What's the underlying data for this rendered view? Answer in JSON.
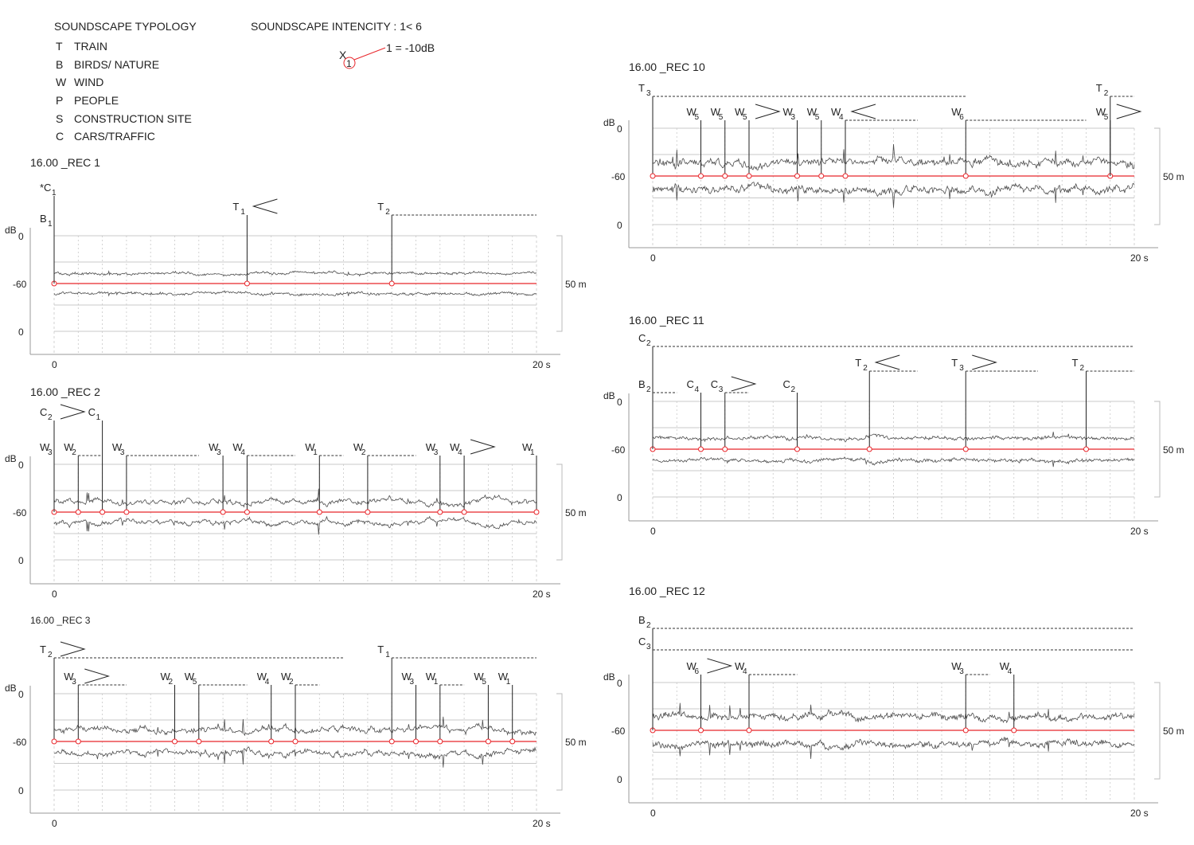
{
  "legend": {
    "title": "SOUNDSCAPE TYPOLOGY",
    "items": [
      {
        "code": "T",
        "label": "TRAIN"
      },
      {
        "code": "B",
        "label": "BIRDS/ NATURE"
      },
      {
        "code": "W",
        "label": "WIND"
      },
      {
        "code": "P",
        "label": "PEOPLE"
      },
      {
        "code": "S",
        "label": "CONSTRUCTION SITE"
      },
      {
        "code": "C",
        "label": "CARS/TRAFFIC"
      }
    ]
  },
  "intensity": {
    "title": "SOUNDSCAPE INTENCITY : 1< 6",
    "symbol": "X",
    "index": "1",
    "note": "1 = -10dB"
  },
  "colors": {
    "baseline": "#e8262b",
    "trace": "#4d4d4d",
    "dashed": "#333333",
    "grid": "#c8c8c8",
    "marker_fill": "#ffffff"
  },
  "chart_data": [
    {
      "type": "line",
      "title": "16.00 _REC 1",
      "ylabel": "dB",
      "y_ticks": [
        "0",
        "-60",
        "0"
      ],
      "x_ticks": [
        "0",
        "20 s"
      ],
      "xlim": [
        0,
        20
      ],
      "range_label": "50 m",
      "trace": {
        "upper": -60,
        "lower": -60,
        "amp": 0.35,
        "noise": 0.3
      },
      "markers": [
        {
          "code": "C",
          "sub": "1",
          "prefix": "*",
          "t": 0,
          "level": 2
        },
        {
          "code": "B",
          "sub": "1",
          "t": 0,
          "level": 1
        },
        {
          "code": "T",
          "sub": "1",
          "t": 8,
          "level": 3,
          "arrow": "left"
        },
        {
          "code": "T",
          "sub": "2",
          "t": 14,
          "level": 3,
          "dash_to": 20
        }
      ]
    },
    {
      "type": "line",
      "title": "16.00 _REC 2",
      "ylabel": "dB",
      "y_ticks": [
        "0",
        "-60",
        "0"
      ],
      "x_ticks": [
        "0",
        "20 s"
      ],
      "xlim": [
        0,
        20
      ],
      "range_label": "50 m",
      "trace": {
        "amp": 0.45,
        "noise": 0.8
      },
      "markers": [
        {
          "code": "C",
          "sub": "2",
          "t": 0,
          "level": 3,
          "arrow": "right"
        },
        {
          "code": "C",
          "sub": "1",
          "t": 2,
          "level": 3
        },
        {
          "code": "W",
          "sub": "3",
          "t": 0,
          "level": 1
        },
        {
          "code": "W",
          "sub": "2",
          "t": 1,
          "level": 1,
          "dash_to": 2
        },
        {
          "code": "W",
          "sub": "3",
          "t": 3,
          "level": 1,
          "dash_to": 6
        },
        {
          "code": "W",
          "sub": "3",
          "t": 7,
          "level": 1
        },
        {
          "code": "W",
          "sub": "4",
          "t": 8,
          "level": 1,
          "dash_to": 10
        },
        {
          "code": "W",
          "sub": "1",
          "t": 11,
          "level": 1,
          "dash_to": 12
        },
        {
          "code": "W",
          "sub": "2",
          "t": 13,
          "level": 1,
          "dash_to": 15
        },
        {
          "code": "W",
          "sub": "3",
          "t": 16,
          "level": 1
        },
        {
          "code": "W",
          "sub": "4",
          "t": 17,
          "level": 1,
          "arrow": "right"
        },
        {
          "code": "W",
          "sub": "1",
          "t": 20,
          "level": 1
        }
      ]
    },
    {
      "type": "line",
      "title": "16.00 _REC 3",
      "ylabel": "dB",
      "y_ticks": [
        "0",
        "-60",
        "0"
      ],
      "x_ticks": [
        "0",
        "20 s"
      ],
      "xlim": [
        0,
        20
      ],
      "range_label": "50 m",
      "trace": {
        "amp": 0.55,
        "noise": 0.9
      },
      "markers": [
        {
          "code": "T",
          "sub": "2",
          "t": 0,
          "level": 2,
          "dash_to": 12,
          "arrow": "right"
        },
        {
          "code": "T",
          "sub": "1",
          "t": 14,
          "level": 2,
          "dash_to": 20
        },
        {
          "code": "W",
          "sub": "3",
          "t": 1,
          "level": 1,
          "dash_to": 3,
          "arrow": "right"
        },
        {
          "code": "W",
          "sub": "2",
          "t": 5,
          "level": 1
        },
        {
          "code": "W",
          "sub": "5",
          "t": 6,
          "level": 1,
          "dash_to": 8
        },
        {
          "code": "W",
          "sub": "4",
          "t": 9,
          "level": 1
        },
        {
          "code": "W",
          "sub": "2",
          "t": 10,
          "level": 1,
          "dash_to": 11
        },
        {
          "code": "W",
          "sub": "3",
          "t": 15,
          "level": 1
        },
        {
          "code": "W",
          "sub": "1",
          "t": 16,
          "level": 1,
          "dash_to": 17
        },
        {
          "code": "W",
          "sub": "5",
          "t": 18,
          "level": 1
        },
        {
          "code": "W",
          "sub": "1",
          "t": 19,
          "level": 1
        }
      ]
    },
    {
      "type": "line",
      "title": "16.00 _REC 10",
      "ylabel": "dB",
      "y_ticks": [
        "0",
        "-60",
        "0"
      ],
      "x_ticks": [
        "0",
        "20 s"
      ],
      "xlim": [
        0,
        20
      ],
      "range_label": "50 m",
      "trace": {
        "amp": 0.9,
        "noise": 1.0
      },
      "markers": [
        {
          "code": "T",
          "sub": "3",
          "t": 0,
          "level": 2,
          "dash_to": 13
        },
        {
          "code": "T",
          "sub": "2",
          "t": 19,
          "level": 2,
          "dash_to": 20
        },
        {
          "code": "W",
          "sub": "5",
          "t": 2,
          "level": 1
        },
        {
          "code": "W",
          "sub": "5",
          "t": 3,
          "level": 1
        },
        {
          "code": "W",
          "sub": "5",
          "t": 4,
          "level": 1,
          "arrow": "right"
        },
        {
          "code": "W",
          "sub": "3",
          "t": 6,
          "level": 1
        },
        {
          "code": "W",
          "sub": "5",
          "t": 7,
          "level": 1
        },
        {
          "code": "W",
          "sub": "4",
          "t": 8,
          "level": 1,
          "dash_to": 11,
          "arrow": "left"
        },
        {
          "code": "W",
          "sub": "6",
          "t": 13,
          "level": 1,
          "dash_to": 18
        },
        {
          "code": "W",
          "sub": "5",
          "t": 19,
          "level": 1,
          "arrow": "right"
        }
      ]
    },
    {
      "type": "line",
      "title": "16.00 _REC 11",
      "ylabel": "dB",
      "y_ticks": [
        "0",
        "-60",
        "0"
      ],
      "x_ticks": [
        "0",
        "20 s"
      ],
      "xlim": [
        0,
        20
      ],
      "range_label": "50 m",
      "trace": {
        "amp": 0.5,
        "noise": 0.4
      },
      "markers": [
        {
          "code": "C",
          "sub": "2",
          "t": 0,
          "level": 3,
          "dash_to": 20
        },
        {
          "code": "B",
          "sub": "2",
          "t": 0,
          "level": 1,
          "dash_to": 1
        },
        {
          "code": "C",
          "sub": "4",
          "t": 2,
          "level": 1
        },
        {
          "code": "C",
          "sub": "3",
          "t": 3,
          "level": 1,
          "dash_to": 4,
          "arrow": "right"
        },
        {
          "code": "C",
          "sub": "2",
          "t": 6,
          "level": 1
        },
        {
          "code": "T",
          "sub": "2",
          "t": 9,
          "level": 2,
          "dash_to": 11,
          "arrow": "left"
        },
        {
          "code": "T",
          "sub": "3",
          "t": 13,
          "level": 2,
          "dash_to": 16,
          "arrow": "right"
        },
        {
          "code": "T",
          "sub": "2",
          "t": 18,
          "level": 2,
          "dash_to": 20
        }
      ]
    },
    {
      "type": "line",
      "title": "16.00 _REC 12",
      "ylabel": "dB",
      "y_ticks": [
        "0",
        "-60",
        "0"
      ],
      "x_ticks": [
        "0",
        "20 s"
      ],
      "xlim": [
        0,
        20
      ],
      "range_label": "50 m",
      "trace": {
        "amp": 0.9,
        "noise": 0.7
      },
      "markers": [
        {
          "code": "B",
          "sub": "2",
          "t": 0,
          "level": 3,
          "dash_to": 20
        },
        {
          "code": "C",
          "sub": "3",
          "t": 0,
          "level": 2,
          "dash_to": 20
        },
        {
          "code": "W",
          "sub": "6",
          "t": 2,
          "level": 1,
          "arrow": "right"
        },
        {
          "code": "W",
          "sub": "4",
          "t": 4,
          "level": 1,
          "dash_to": 6
        },
        {
          "code": "W",
          "sub": "3",
          "t": 13,
          "level": 1,
          "dash_to": 14
        },
        {
          "code": "W",
          "sub": "4",
          "t": 15,
          "level": 1
        }
      ]
    }
  ]
}
